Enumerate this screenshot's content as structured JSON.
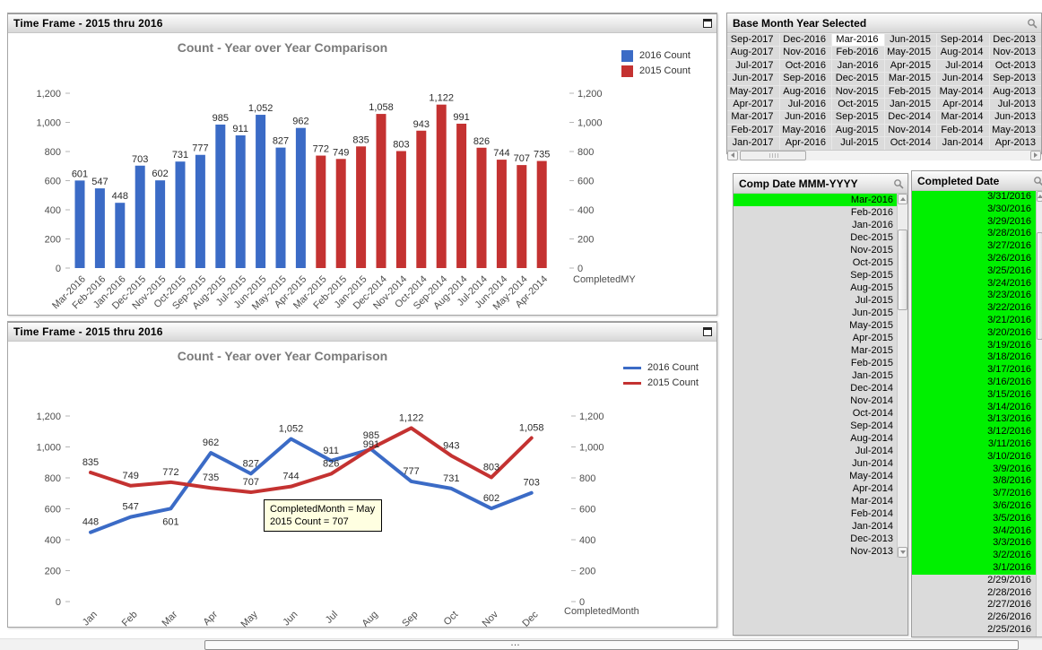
{
  "windows": [
    {
      "caption": "Time Frame - 2015 thru 2016"
    },
    {
      "caption": "Time Frame - 2015 thru 2016"
    }
  ],
  "chart_data": [
    {
      "type": "bar",
      "title": "Count - Year over Year Comparison",
      "xlabel": "CompletedMY",
      "ylim": [
        0,
        1200
      ],
      "ytick_values": [
        0,
        200,
        400,
        600,
        800,
        1000,
        1200
      ],
      "yticks": [
        "0",
        "200",
        "400",
        "600",
        "800",
        "1,000",
        "1,200"
      ],
      "legend": [
        {
          "name": "2016 Count",
          "color": "#3B6BC6"
        },
        {
          "name": "2015 Count",
          "color": "#C43231"
        }
      ],
      "series_split": 12,
      "categories": [
        "Mar-2016",
        "Feb-2016",
        "Jan-2016",
        "Dec-2015",
        "Nov-2015",
        "Oct-2015",
        "Sep-2015",
        "Aug-2015",
        "Jul-2015",
        "Jun-2015",
        "May-2015",
        "Apr-2015",
        "Mar-2015",
        "Feb-2015",
        "Jan-2015",
        "Dec-2014",
        "Nov-2014",
        "Oct-2014",
        "Sep-2014",
        "Aug-2014",
        "Jul-2014",
        "Jun-2014",
        "May-2014",
        "Apr-2014"
      ],
      "values": [
        601,
        547,
        448,
        703,
        602,
        731,
        777,
        985,
        911,
        1052,
        827,
        962,
        772,
        749,
        835,
        1058,
        803,
        943,
        1122,
        991,
        826,
        744,
        707,
        735
      ]
    },
    {
      "type": "line",
      "title": "Count - Year over Year Comparison",
      "xlabel": "CompletedMonth",
      "ylim": [
        0,
        1200
      ],
      "ytick_values": [
        0,
        200,
        400,
        600,
        800,
        1000,
        1200
      ],
      "yticks": [
        "0",
        "200",
        "400",
        "600",
        "800",
        "1,000",
        "1,200"
      ],
      "categories": [
        "Jan",
        "Feb",
        "Mar",
        "Apr",
        "May",
        "Jun",
        "Jul",
        "Aug",
        "Sep",
        "Oct",
        "Nov",
        "Dec"
      ],
      "series": [
        {
          "name": "2016 Count",
          "color": "#3B6BC6",
          "values": [
            448,
            547,
            601,
            962,
            827,
            1052,
            911,
            985,
            777,
            731,
            602,
            703
          ]
        },
        {
          "name": "2015 Count",
          "color": "#C43231",
          "values": [
            835,
            749,
            772,
            735,
            707,
            744,
            826,
            991,
            1122,
            943,
            803,
            1058
          ]
        }
      ],
      "tooltip": {
        "line1": "CompletedMonth = May",
        "line2": "2015 Count = 707"
      }
    }
  ],
  "base_month": {
    "title": "Base Month Year Selected",
    "selected": "Mar-2016",
    "columns": [
      [
        "Sep-2017",
        "Aug-2017",
        "Jul-2017",
        "Jun-2017",
        "May-2017",
        "Apr-2017",
        "Mar-2017",
        "Feb-2017",
        "Jan-2017"
      ],
      [
        "Dec-2016",
        "Nov-2016",
        "Oct-2016",
        "Sep-2016",
        "Aug-2016",
        "Jul-2016",
        "Jun-2016",
        "May-2016",
        "Apr-2016"
      ],
      [
        "Mar-2016",
        "Feb-2016",
        "Jan-2016",
        "Dec-2015",
        "Nov-2015",
        "Oct-2015",
        "Sep-2015",
        "Aug-2015",
        "Jul-2015"
      ],
      [
        "Jun-2015",
        "May-2015",
        "Apr-2015",
        "Mar-2015",
        "Feb-2015",
        "Jan-2015",
        "Dec-2014",
        "Nov-2014",
        "Oct-2014"
      ],
      [
        "Sep-2014",
        "Aug-2014",
        "Jul-2014",
        "Jun-2014",
        "May-2014",
        "Apr-2014",
        "Mar-2014",
        "Feb-2014",
        "Jan-2014"
      ],
      [
        "Dec-2013",
        "Nov-2013",
        "Oct-2013",
        "Sep-2013",
        "Aug-2013",
        "Jul-2013",
        "Jun-2013",
        "May-2013",
        "Apr-2013"
      ]
    ]
  },
  "comp_date": {
    "title": "Comp Date MMM-YYYY",
    "selected": "Mar-2016",
    "items": [
      "Mar-2016",
      "Feb-2016",
      "Jan-2016",
      "Dec-2015",
      "Nov-2015",
      "Oct-2015",
      "Sep-2015",
      "Aug-2015",
      "Jul-2015",
      "Jun-2015",
      "May-2015",
      "Apr-2015",
      "Mar-2015",
      "Feb-2015",
      "Jan-2015",
      "Dec-2014",
      "Nov-2014",
      "Oct-2014",
      "Sep-2014",
      "Aug-2014",
      "Jul-2014",
      "Jun-2014",
      "May-2014",
      "Apr-2014",
      "Mar-2014",
      "Feb-2014",
      "Jan-2014",
      "Dec-2013",
      "Nov-2013"
    ]
  },
  "completed_date": {
    "title": "Completed Date",
    "selected_count": 31,
    "items": [
      "3/31/2016",
      "3/30/2016",
      "3/29/2016",
      "3/28/2016",
      "3/27/2016",
      "3/26/2016",
      "3/25/2016",
      "3/24/2016",
      "3/23/2016",
      "3/22/2016",
      "3/21/2016",
      "3/20/2016",
      "3/19/2016",
      "3/18/2016",
      "3/17/2016",
      "3/16/2016",
      "3/15/2016",
      "3/14/2016",
      "3/13/2016",
      "3/12/2016",
      "3/11/2016",
      "3/10/2016",
      "3/9/2016",
      "3/8/2016",
      "3/7/2016",
      "3/6/2016",
      "3/5/2016",
      "3/4/2016",
      "3/3/2016",
      "3/2/2016",
      "3/1/2016",
      "2/29/2016",
      "2/28/2016",
      "2/27/2016",
      "2/26/2016",
      "2/25/2016"
    ]
  },
  "colors": {
    "series_2016": "#3B6BC6",
    "series_2015": "#C43231",
    "selected_green": "#00F000",
    "unselected_gray": "#DBDBDB",
    "selected_white": "#FFFFFF",
    "tooltip_bg": "#FFFFE1"
  }
}
